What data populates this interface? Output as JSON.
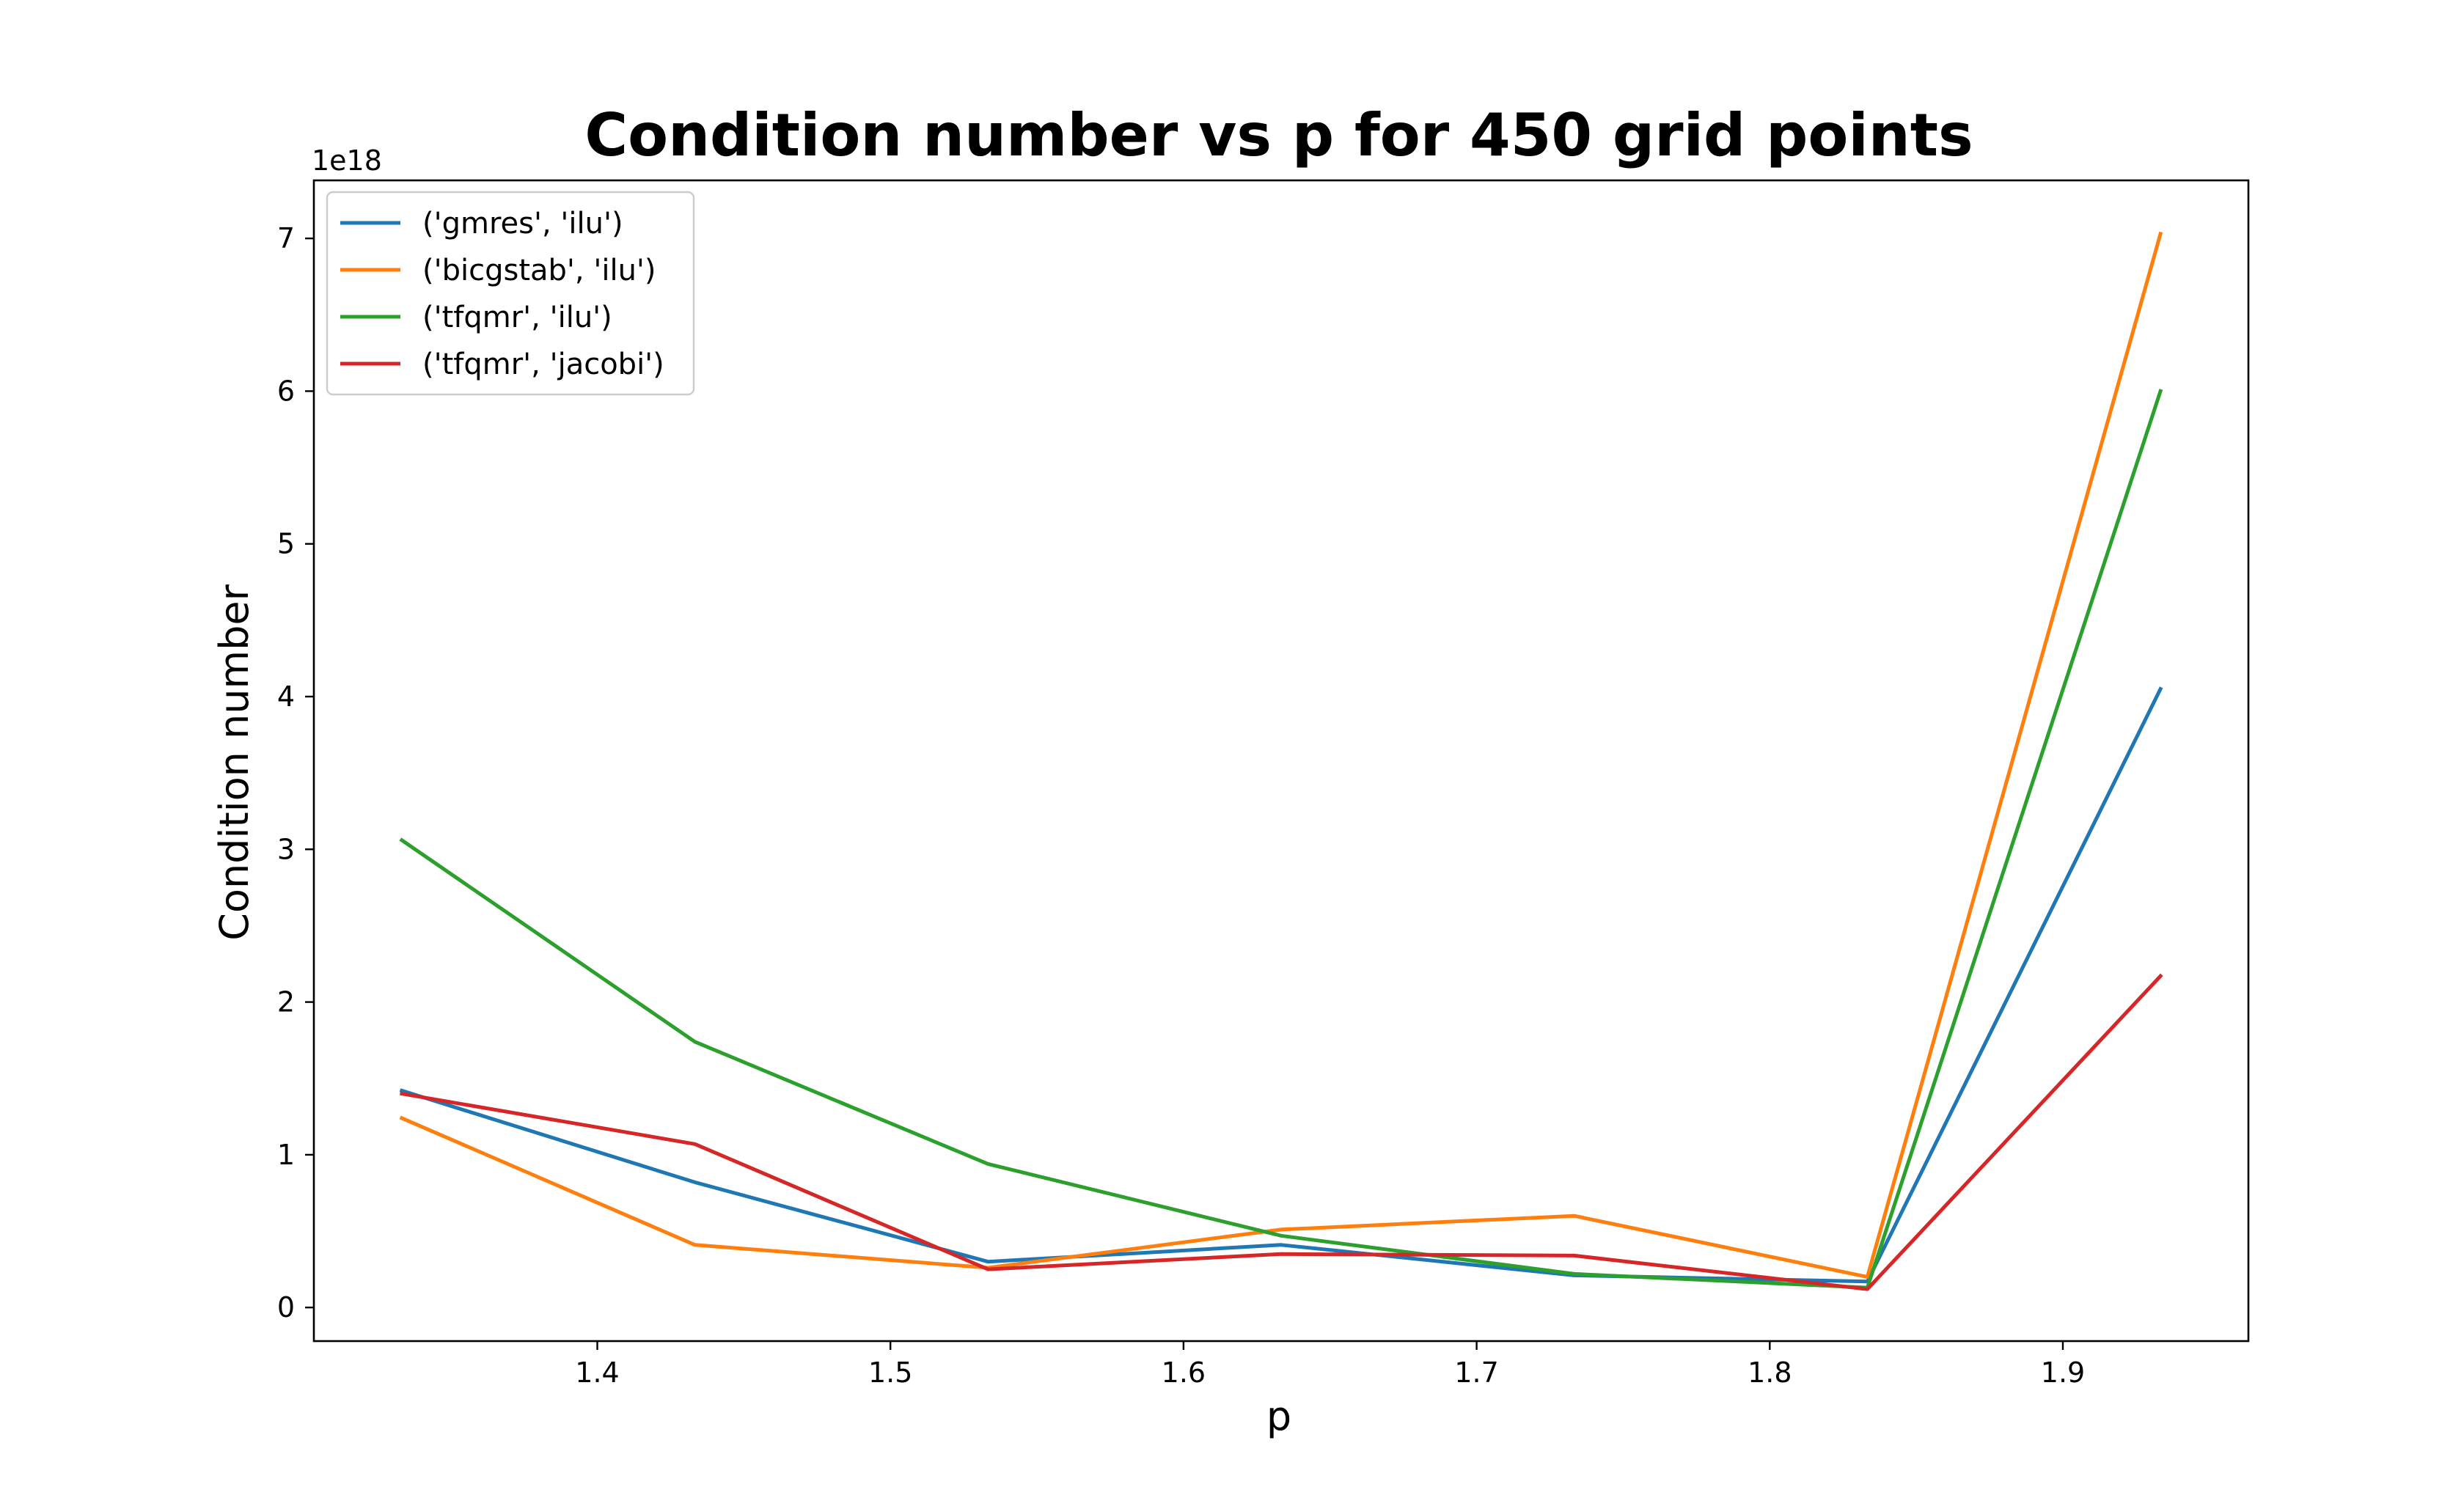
{
  "chart_data": {
    "type": "line",
    "title": "Condition number vs p for 450 grid points",
    "xlabel": "p",
    "ylabel": "Condition number",
    "y_offset_label": "1e18",
    "x": [
      1.3333,
      1.4333,
      1.5333,
      1.6333,
      1.7333,
      1.8333,
      1.9333
    ],
    "xlim": [
      1.3033,
      1.9633
    ],
    "ylim": [
      -0.22,
      7.38
    ],
    "y_scale_exponent": 18,
    "x_ticks": [
      {
        "value": 1.4,
        "label": "1.4"
      },
      {
        "value": 1.5,
        "label": "1.5"
      },
      {
        "value": 1.6,
        "label": "1.6"
      },
      {
        "value": 1.7,
        "label": "1.7"
      },
      {
        "value": 1.8,
        "label": "1.8"
      },
      {
        "value": 1.9,
        "label": "1.9"
      }
    ],
    "y_ticks": [
      {
        "value": 0,
        "label": "0"
      },
      {
        "value": 1,
        "label": "1"
      },
      {
        "value": 2,
        "label": "2"
      },
      {
        "value": 3,
        "label": "3"
      },
      {
        "value": 4,
        "label": "4"
      },
      {
        "value": 5,
        "label": "5"
      },
      {
        "value": 6,
        "label": "6"
      },
      {
        "value": 7,
        "label": "7"
      }
    ],
    "grid": false,
    "legend_position": "top-left",
    "series": [
      {
        "name": "('gmres', 'ilu')",
        "color": "#1f77b4",
        "values": [
          1.42,
          0.82,
          0.3,
          0.41,
          0.21,
          0.17,
          4.05
        ]
      },
      {
        "name": "('bicgstab', 'ilu')",
        "color": "#ff7f0e",
        "values": [
          1.24,
          0.41,
          0.26,
          0.51,
          0.6,
          0.2,
          7.03
        ]
      },
      {
        "name": "('tfqmr', 'ilu')",
        "color": "#2ca02c",
        "values": [
          3.06,
          1.74,
          0.94,
          0.47,
          0.22,
          0.13,
          6.0
        ]
      },
      {
        "name": "('tfqmr', 'jacobi')",
        "color": "#d62728",
        "values": [
          1.4,
          1.07,
          0.25,
          0.35,
          0.34,
          0.12,
          2.17
        ]
      }
    ]
  }
}
